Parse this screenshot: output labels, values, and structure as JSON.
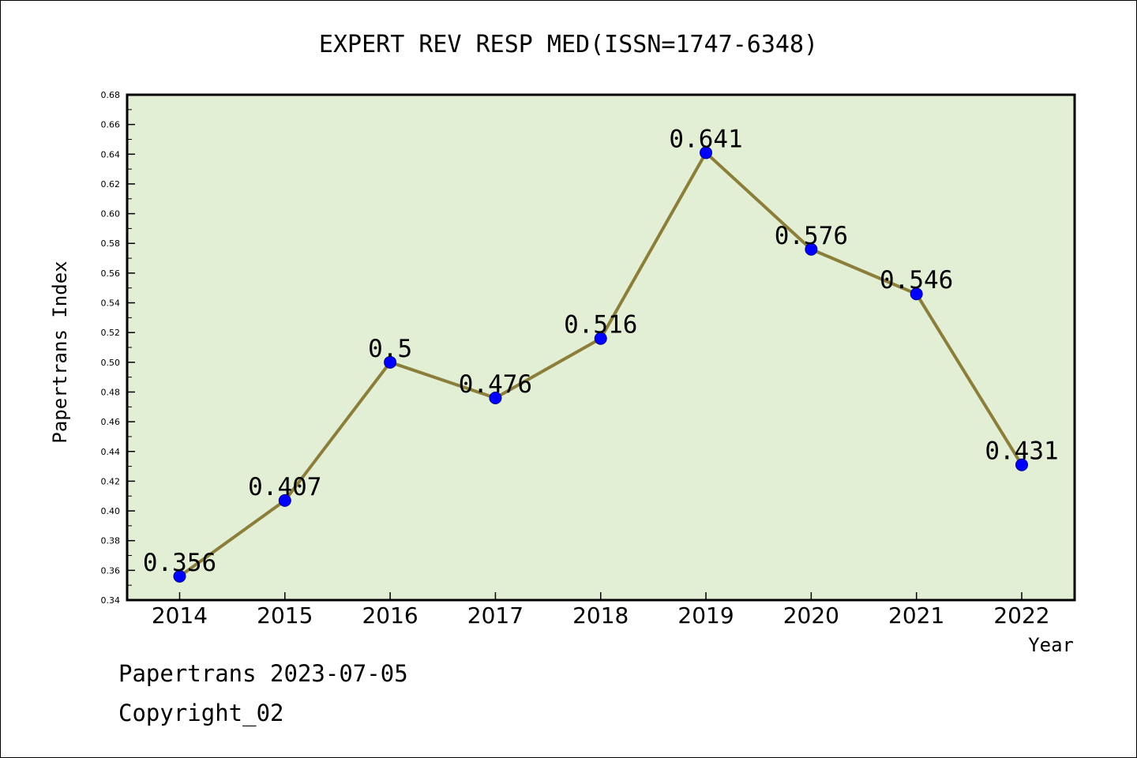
{
  "chart_data": {
    "type": "line",
    "title": "EXPERT REV RESP MED(ISSN=1747-6348)",
    "xlabel": "Year",
    "ylabel": "Papertrans Index",
    "categories": [
      "2014",
      "2015",
      "2016",
      "2017",
      "2018",
      "2019",
      "2020",
      "2021",
      "2022"
    ],
    "values": [
      0.356,
      0.407,
      0.5,
      0.476,
      0.516,
      0.641,
      0.576,
      0.546,
      0.431
    ],
    "data_labels": [
      "0.356",
      "0.407",
      "0.5",
      "0.476",
      "0.516",
      "0.641",
      "0.576",
      "0.546",
      "0.431"
    ],
    "ylim": [
      0.34,
      0.68
    ],
    "y_ticks": [
      "0.34",
      "0.36",
      "0.38",
      "0.40",
      "0.42",
      "0.44",
      "0.46",
      "0.48",
      "0.50",
      "0.52",
      "0.54",
      "0.56",
      "0.58",
      "0.60",
      "0.62",
      "0.64",
      "0.66",
      "0.68"
    ],
    "grid": false,
    "colors": {
      "plot_background": "#e2efd5",
      "line": "#8b7d3a",
      "marker": "#0000ff"
    }
  },
  "footer": {
    "line1": "Papertrans 2023-07-05",
    "line2": "Copyright_02"
  }
}
